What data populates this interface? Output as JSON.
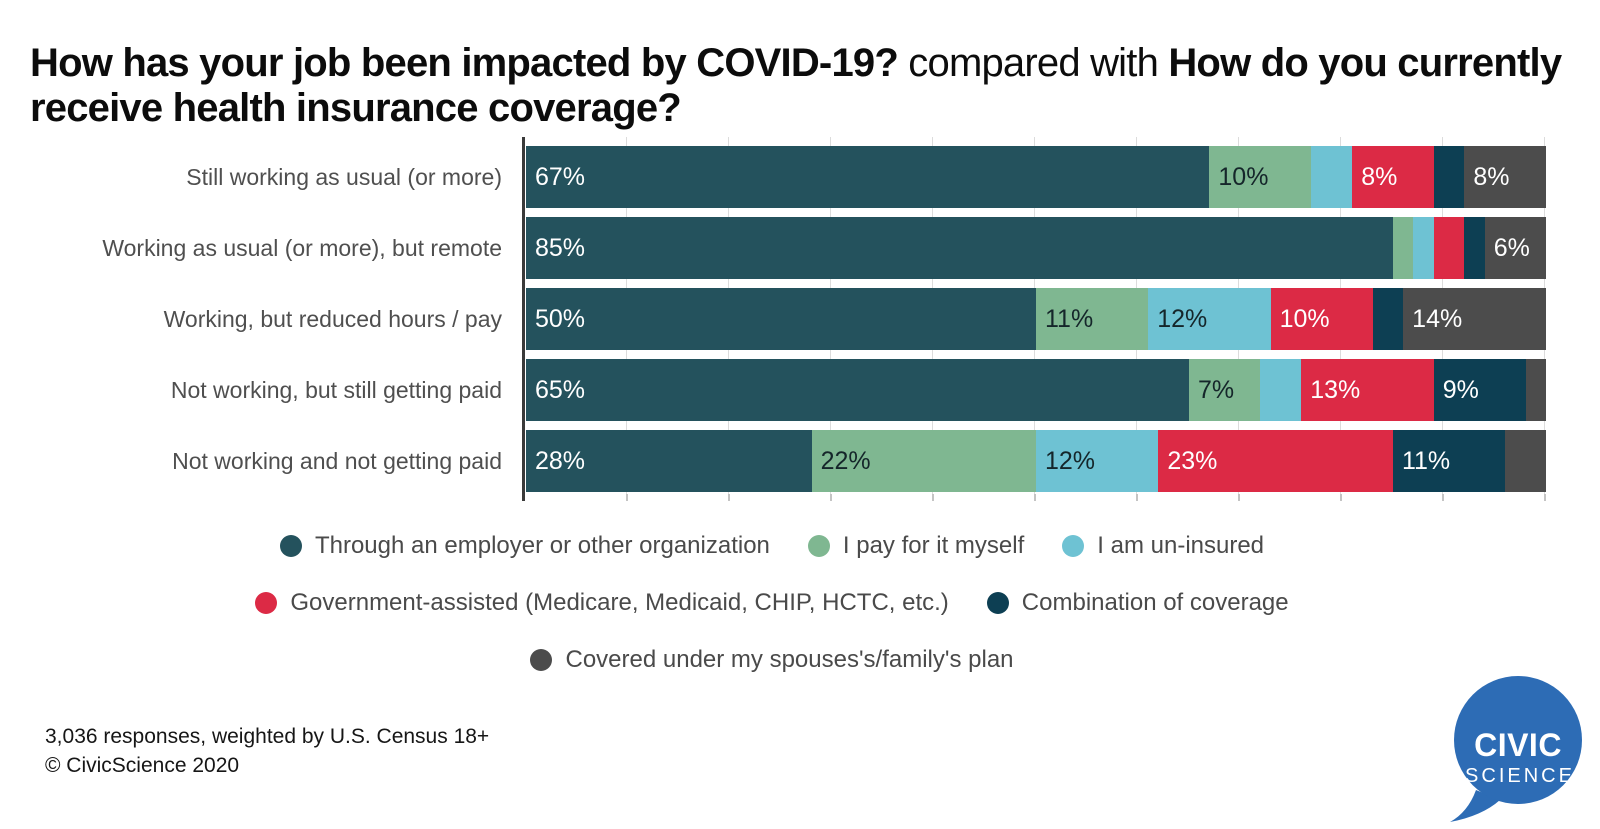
{
  "title": {
    "question1": "How has your job been impacted by COVID-19?",
    "connector": " compared with ",
    "question2": "How do you currently receive health insurance coverage?"
  },
  "chart_data": {
    "type": "bar",
    "variant": "horizontal-stacked-100pct",
    "xlim": [
      0,
      100
    ],
    "grid": true,
    "gridline_step_pct": 10,
    "value_suffix": "%",
    "min_value_for_label": 6,
    "legend_position": "bottom-center",
    "categories": [
      "Still working as usual (or more)",
      "Working as usual (or more), but remote",
      "Working, but reduced hours / pay",
      "Not working, but still getting paid",
      "Not working and not getting paid"
    ],
    "series": [
      {
        "name": "Through an employer or other organization",
        "color": "#24525d",
        "label_text_color": "#ffffff",
        "values": [
          67,
          85,
          50,
          65,
          28
        ]
      },
      {
        "name": "I pay for it myself",
        "color": "#7fb791",
        "label_text_color": "#15262a",
        "values": [
          10,
          2,
          11,
          7,
          22
        ]
      },
      {
        "name": "I am un-insured",
        "color": "#6ec2d3",
        "label_text_color": "#15262a",
        "values": [
          4,
          2,
          12,
          4,
          12
        ]
      },
      {
        "name": "Government-assisted (Medicare, Medicaid, CHIP, HCTC, etc.)",
        "color": "#dc2a45",
        "label_text_color": "#ffffff",
        "values": [
          8,
          3,
          10,
          13,
          23
        ]
      },
      {
        "name": "Combination of coverage",
        "color": "#0d3f53",
        "label_text_color": "#ffffff",
        "values": [
          3,
          2,
          3,
          9,
          11
        ]
      },
      {
        "name": "Covered under my spouses's/family's plan",
        "color": "#4c4c4c",
        "label_text_color": "#ffffff",
        "values": [
          8,
          6,
          14,
          2,
          4
        ]
      }
    ]
  },
  "legend": {
    "rows": [
      [
        0,
        1,
        2
      ],
      [
        3,
        4
      ],
      [
        5
      ]
    ]
  },
  "footer": {
    "line1": "3,036 responses, weighted by U.S. Census 18+",
    "line2": "© CivicScience 2020"
  },
  "logo": {
    "line1": "CIVIC",
    "line2": "SCIENCE",
    "color": "#2d6cb5"
  }
}
